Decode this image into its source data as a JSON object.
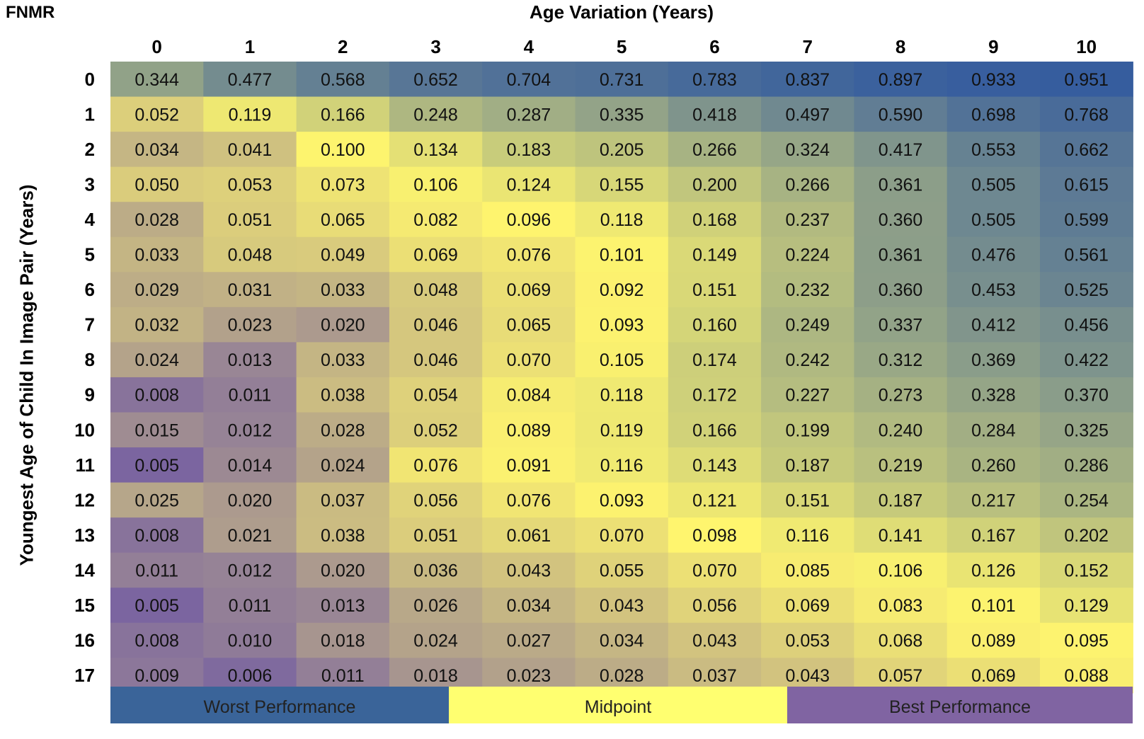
{
  "corner_label": "FNMR",
  "chart_data": {
    "type": "heatmap",
    "xlabel": "Age Variation (Years)",
    "ylabel": "Youngest Age of Child In Image Pair (Years)",
    "x_categories": [
      "0",
      "1",
      "2",
      "3",
      "4",
      "5",
      "6",
      "7",
      "8",
      "9",
      "10"
    ],
    "y_categories": [
      "0",
      "1",
      "2",
      "3",
      "4",
      "5",
      "6",
      "7",
      "8",
      "9",
      "10",
      "11",
      "12",
      "13",
      "14",
      "15",
      "16",
      "17"
    ],
    "values": [
      [
        "0.344",
        "0.477",
        "0.568",
        "0.652",
        "0.704",
        "0.731",
        "0.783",
        "0.837",
        "0.897",
        "0.933",
        "0.951"
      ],
      [
        "0.052",
        "0.119",
        "0.166",
        "0.248",
        "0.287",
        "0.335",
        "0.418",
        "0.497",
        "0.590",
        "0.698",
        "0.768"
      ],
      [
        "0.034",
        "0.041",
        "0.100",
        "0.134",
        "0.183",
        "0.205",
        "0.266",
        "0.324",
        "0.417",
        "0.553",
        "0.662"
      ],
      [
        "0.050",
        "0.053",
        "0.073",
        "0.106",
        "0.124",
        "0.155",
        "0.200",
        "0.266",
        "0.361",
        "0.505",
        "0.615"
      ],
      [
        "0.028",
        "0.051",
        "0.065",
        "0.082",
        "0.096",
        "0.118",
        "0.168",
        "0.237",
        "0.360",
        "0.505",
        "0.599"
      ],
      [
        "0.033",
        "0.048",
        "0.049",
        "0.069",
        "0.076",
        "0.101",
        "0.149",
        "0.224",
        "0.361",
        "0.476",
        "0.561"
      ],
      [
        "0.029",
        "0.031",
        "0.033",
        "0.048",
        "0.069",
        "0.092",
        "0.151",
        "0.232",
        "0.360",
        "0.453",
        "0.525"
      ],
      [
        "0.032",
        "0.023",
        "0.020",
        "0.046",
        "0.065",
        "0.093",
        "0.160",
        "0.249",
        "0.337",
        "0.412",
        "0.456"
      ],
      [
        "0.024",
        "0.013",
        "0.033",
        "0.046",
        "0.070",
        "0.105",
        "0.174",
        "0.242",
        "0.312",
        "0.369",
        "0.422"
      ],
      [
        "0.008",
        "0.011",
        "0.038",
        "0.054",
        "0.084",
        "0.118",
        "0.172",
        "0.227",
        "0.273",
        "0.328",
        "0.370"
      ],
      [
        "0.015",
        "0.012",
        "0.028",
        "0.052",
        "0.089",
        "0.119",
        "0.166",
        "0.199",
        "0.240",
        "0.284",
        "0.325"
      ],
      [
        "0.005",
        "0.014",
        "0.024",
        "0.076",
        "0.091",
        "0.116",
        "0.143",
        "0.187",
        "0.219",
        "0.260",
        "0.286"
      ],
      [
        "0.025",
        "0.020",
        "0.037",
        "0.056",
        "0.076",
        "0.093",
        "0.121",
        "0.151",
        "0.187",
        "0.217",
        "0.254"
      ],
      [
        "0.008",
        "0.021",
        "0.038",
        "0.051",
        "0.061",
        "0.070",
        "0.098",
        "0.116",
        "0.141",
        "0.167",
        "0.202"
      ],
      [
        "0.011",
        "0.012",
        "0.020",
        "0.036",
        "0.043",
        "0.055",
        "0.070",
        "0.085",
        "0.106",
        "0.126",
        "0.152"
      ],
      [
        "0.005",
        "0.011",
        "0.013",
        "0.026",
        "0.034",
        "0.043",
        "0.056",
        "0.069",
        "0.083",
        "0.101",
        "0.129"
      ],
      [
        "0.008",
        "0.010",
        "0.018",
        "0.024",
        "0.027",
        "0.034",
        "0.043",
        "0.053",
        "0.068",
        "0.089",
        "0.095"
      ],
      [
        "0.009",
        "0.006",
        "0.011",
        "0.018",
        "0.023",
        "0.028",
        "0.037",
        "0.043",
        "0.057",
        "0.069",
        "0.088"
      ]
    ],
    "color_scale": {
      "type": "three-color",
      "min_color": "#7b65a0",
      "mid_color": "#fff56e",
      "max_color": "#365d9e"
    },
    "legend": [
      {
        "label": "Worst Performance",
        "color": "#3a6499"
      },
      {
        "label": "Midpoint",
        "color": "#ffff70"
      },
      {
        "label": "Best Performance",
        "color": "#8064a2"
      }
    ]
  }
}
